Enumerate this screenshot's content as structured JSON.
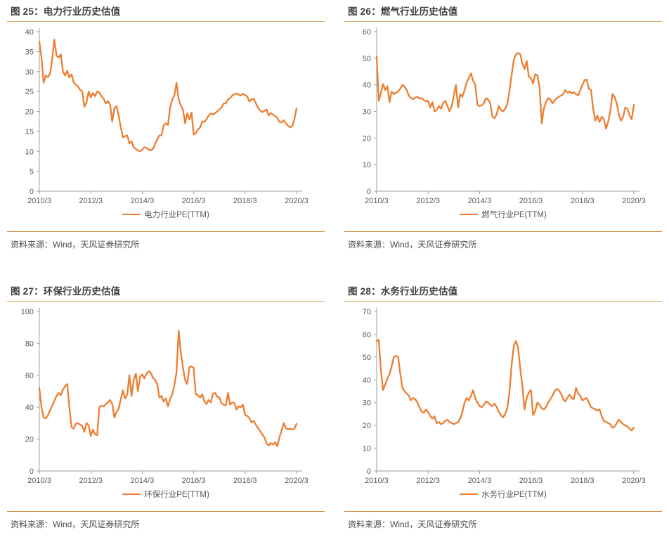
{
  "colors": {
    "series": "#ED7D31",
    "title_rule": "#D8A55E",
    "source_rule": "#C98A3C",
    "axis": "#9E9E9E",
    "tick_text": "#595959",
    "title_text": "#3D3D3D",
    "source_text": "#4D4D4D"
  },
  "chart_data": [
    {
      "type": "line",
      "title": "图 25：电力行业历史估值",
      "legend": [
        "电力行业PE(TTM)"
      ],
      "source": "资料来源：Wind，天风证券研究所",
      "x_tick_labels": [
        "2010/3",
        "2012/3",
        "2014/3",
        "2016/3",
        "2018/3",
        "2020/3"
      ],
      "x_tick_months": [
        0,
        24,
        48,
        72,
        96,
        120
      ],
      "ylim": [
        0,
        40
      ],
      "ytick_step": 5,
      "values": [
        37.5,
        33.5,
        27.2,
        29.0,
        28.6,
        29.5,
        33.0,
        38.0,
        34.0,
        33.5,
        34.3,
        30.0,
        29.0,
        30.2,
        28.5,
        29.3,
        27.3,
        26.7,
        26.3,
        25.4,
        25.0,
        21.2,
        22.3,
        25.0,
        23.5,
        24.6,
        23.8,
        25.0,
        24.7,
        23.8,
        23.2,
        22.0,
        22.6,
        21.7,
        17.5,
        20.8,
        21.3,
        19.0,
        16.0,
        13.5,
        13.8,
        14.0,
        12.0,
        12.5,
        11.0,
        10.6,
        10.2,
        10.0,
        10.4,
        11.0,
        10.9,
        10.4,
        10.3,
        10.6,
        11.9,
        13.0,
        14.0,
        14.0,
        16.6,
        17.0,
        16.6,
        21.0,
        23.0,
        24.0,
        27.2,
        23.0,
        21.5,
        20.5,
        17.0,
        19.5,
        18.0,
        19.7,
        14.2,
        14.5,
        15.5,
        16.0,
        17.5,
        17.4,
        18.0,
        19.0,
        19.5,
        19.2,
        19.6,
        20.0,
        20.5,
        21.0,
        22.0,
        22.0,
        23.0,
        23.3,
        24.0,
        24.3,
        24.5,
        24.2,
        24.0,
        24.4,
        24.1,
        23.7,
        22.5,
        23.0,
        23.2,
        22.0,
        21.0,
        20.3,
        19.8,
        20.2,
        20.5,
        19.0,
        19.6,
        19.2,
        18.8,
        18.4,
        17.4,
        17.2,
        17.8,
        17.0,
        16.4,
        16.0,
        16.3,
        18.0,
        20.8
      ]
    },
    {
      "type": "line",
      "title": "图 26：燃气行业历史估值",
      "legend": [
        "燃气行业PE(TTM)"
      ],
      "source": "资料来源：Wind，天风证券研究所",
      "x_tick_labels": [
        "2010/3",
        "2012/3",
        "2014/3",
        "2016/3",
        "2018/3",
        "2020/3"
      ],
      "x_tick_months": [
        0,
        24,
        48,
        72,
        96,
        120
      ],
      "ylim": [
        0,
        60
      ],
      "ytick_step": 10,
      "values": [
        50.5,
        34.0,
        37.0,
        40.3,
        38.0,
        39.5,
        33.5,
        37.5,
        36.5,
        37.0,
        37.5,
        38.5,
        40.0,
        39.3,
        38.0,
        36.0,
        35.0,
        34.6,
        35.2,
        35.5,
        34.8,
        35.0,
        34.2,
        33.8,
        34.0,
        31.5,
        33.5,
        30.0,
        30.5,
        32.0,
        31.0,
        33.0,
        34.0,
        32.0,
        30.0,
        32.0,
        36.0,
        40.0,
        31.5,
        36.5,
        35.5,
        38.0,
        41.0,
        42.5,
        44.3,
        41.5,
        40.0,
        32.5,
        32.0,
        32.3,
        33.0,
        35.0,
        34.5,
        33.0,
        28.0,
        27.5,
        29.0,
        32.0,
        30.5,
        30.0,
        31.0,
        33.0,
        38.0,
        44.0,
        49.5,
        51.5,
        52.0,
        51.5,
        48.0,
        46.0,
        49.0,
        43.0,
        42.5,
        40.5,
        44.0,
        43.5,
        39.0,
        25.5,
        31.0,
        33.5,
        35.0,
        34.5,
        33.0,
        34.0,
        35.0,
        35.5,
        36.0,
        36.5,
        38.0,
        37.0,
        37.5,
        36.8,
        37.2,
        36.5,
        36.0,
        38.0,
        40.0,
        41.8,
        42.0,
        38.5,
        38.0,
        31.0,
        26.5,
        28.5,
        26.0,
        28.0,
        27.0,
        23.5,
        26.0,
        30.0,
        36.5,
        35.5,
        33.0,
        29.0,
        26.5,
        28.0,
        31.5,
        31.0,
        28.5,
        27.0,
        32.5
      ]
    },
    {
      "type": "line",
      "title": "图 27：环保行业历史估值",
      "legend": [
        "环保行业PE(TTM)"
      ],
      "source": "资料来源：Wind，天风证券研究所",
      "x_tick_labels": [
        "2010/3",
        "2012/3",
        "2014/3",
        "2016/3",
        "2018/3",
        "2020/3"
      ],
      "x_tick_months": [
        0,
        24,
        48,
        72,
        96,
        120
      ],
      "ylim": [
        0,
        100
      ],
      "ytick_step": 20,
      "values": [
        52.0,
        40.0,
        33.5,
        33.0,
        35.0,
        38.0,
        41.0,
        44.0,
        47.0,
        49.0,
        47.5,
        51.0,
        53.0,
        54.5,
        40.0,
        27.5,
        26.5,
        29.5,
        30.0,
        29.0,
        28.5,
        24.5,
        30.0,
        28.5,
        22.0,
        26.0,
        23.0,
        22.5,
        40.0,
        41.0,
        40.5,
        42.0,
        43.0,
        44.5,
        42.0,
        33.5,
        37.0,
        39.0,
        45.0,
        50.5,
        45.5,
        48.0,
        60.0,
        47.0,
        57.0,
        61.0,
        50.0,
        59.0,
        60.5,
        58.0,
        61.0,
        62.5,
        61.5,
        58.5,
        57.0,
        54.5,
        46.0,
        47.0,
        43.5,
        45.5,
        40.5,
        45.0,
        48.0,
        54.0,
        62.0,
        88.0,
        74.0,
        65.0,
        57.0,
        54.5,
        65.0,
        65.5,
        64.5,
        48.0,
        47.5,
        46.0,
        48.0,
        43.5,
        42.0,
        44.5,
        43.0,
        48.5,
        49.0,
        46.5,
        46.0,
        42.5,
        41.5,
        41.0,
        49.0,
        41.5,
        43.0,
        42.5,
        38.5,
        40.5,
        40.0,
        41.5,
        35.0,
        34.5,
        33.0,
        30.5,
        31.5,
        29.0,
        27.0,
        25.0,
        23.0,
        21.0,
        17.5,
        16.0,
        17.5,
        16.5,
        18.0,
        15.5,
        21.0,
        25.0,
        30.0,
        27.0,
        26.0,
        26.5,
        26.0,
        26.5,
        29.5
      ]
    },
    {
      "type": "line",
      "title": "图 28：水务行业历史估值",
      "legend": [
        "水务行业PE(TTM)"
      ],
      "source": "资料来源：Wind，天风证券研究所",
      "x_tick_labels": [
        "2010/3",
        "2012/3",
        "2014/3",
        "2016/3",
        "2018/3",
        "2020/3"
      ],
      "x_tick_months": [
        0,
        24,
        48,
        72,
        96,
        120
      ],
      "ylim": [
        0,
        70
      ],
      "ytick_step": 10,
      "values": [
        57.0,
        57.5,
        44.0,
        35.5,
        38.0,
        40.5,
        42.5,
        46.0,
        50.0,
        50.5,
        50.0,
        43.0,
        36.5,
        35.0,
        34.0,
        33.0,
        31.0,
        32.0,
        31.5,
        30.0,
        28.0,
        26.0,
        25.5,
        27.0,
        26.0,
        24.0,
        23.0,
        24.0,
        21.0,
        21.5,
        20.5,
        21.0,
        22.0,
        22.5,
        21.5,
        21.0,
        20.5,
        21.0,
        21.5,
        23.0,
        26.0,
        30.0,
        32.0,
        31.0,
        33.0,
        35.5,
        32.0,
        30.0,
        28.5,
        28.0,
        29.0,
        30.5,
        30.0,
        29.0,
        28.5,
        29.5,
        28.0,
        26.0,
        24.5,
        23.5,
        25.0,
        28.0,
        35.0,
        47.0,
        55.0,
        57.0,
        54.0,
        45.0,
        37.0,
        27.0,
        32.0,
        34.5,
        35.5,
        24.5,
        26.5,
        30.0,
        29.0,
        27.5,
        27.0,
        28.0,
        30.0,
        31.5,
        33.0,
        35.0,
        36.0,
        35.5,
        34.0,
        31.5,
        30.5,
        32.0,
        33.5,
        32.0,
        31.5,
        36.5,
        34.0,
        33.0,
        31.0,
        31.5,
        32.0,
        30.0,
        28.0,
        27.5,
        27.0,
        26.5,
        27.0,
        24.0,
        22.0,
        21.5,
        21.0,
        20.5,
        19.0,
        19.5,
        21.0,
        22.5,
        21.5,
        20.5,
        20.0,
        19.5,
        18.5,
        17.8,
        19.0
      ]
    }
  ]
}
